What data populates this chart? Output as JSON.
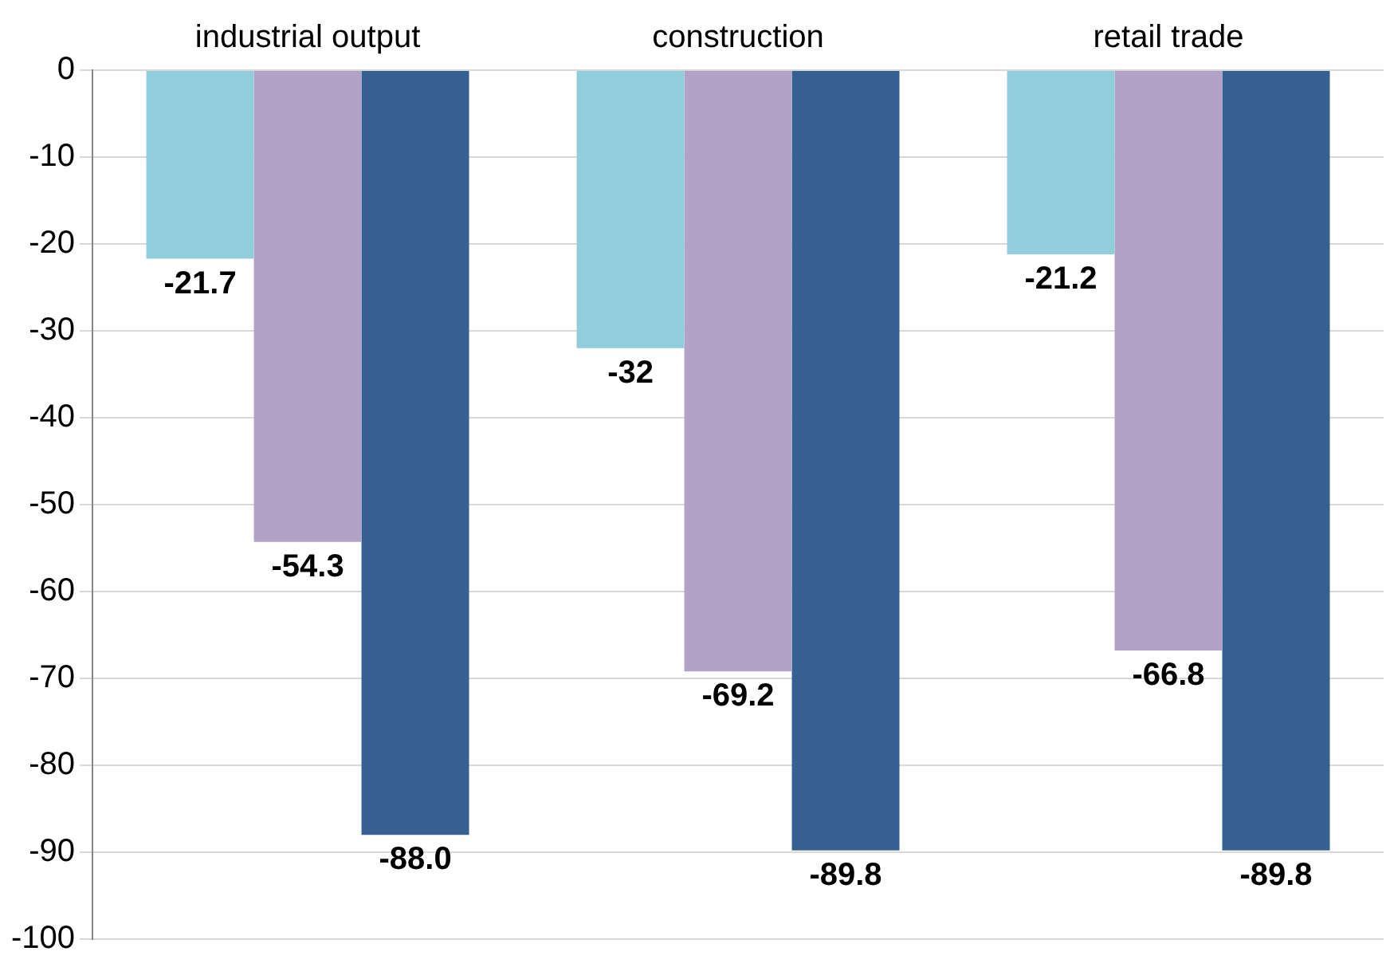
{
  "chart_data": {
    "type": "bar",
    "categories": [
      "industrial output",
      "construction",
      "retail trade"
    ],
    "series": [
      {
        "color": "#92cddc",
        "values": [
          -21.7,
          -32,
          -21.2
        ],
        "value_labels": [
          "-21.7",
          "-32",
          "-21.2"
        ]
      },
      {
        "color": "#b3a2c7",
        "values": [
          -54.3,
          -69.2,
          -66.8
        ],
        "value_labels": [
          "-54.3",
          "-69.2",
          "-66.8"
        ]
      },
      {
        "color": "#366092",
        "values": [
          -88.0,
          -89.8,
          -89.8
        ],
        "value_labels": [
          "-88.0",
          "-89.8",
          "-89.8"
        ]
      }
    ],
    "ylim": [
      -100,
      0
    ],
    "yticks": [
      0,
      -10,
      -20,
      -30,
      -40,
      -50,
      -60,
      -70,
      -80,
      -90,
      -100
    ],
    "grid": "y",
    "legend": false
  }
}
